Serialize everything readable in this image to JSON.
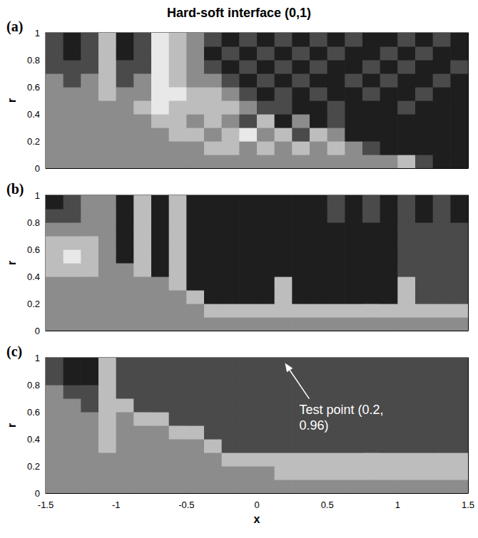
{
  "chart_data": [
    {
      "type": "contour",
      "title": "Hard-soft interface (0,1)",
      "panel": "(a)",
      "y_label": "r",
      "xlim": [
        -1.5,
        1.5
      ],
      "xticks": [
        -1.5,
        -1,
        -0.5,
        0,
        0.5,
        1,
        1.5
      ],
      "ylim": [
        0,
        1
      ],
      "yticks": [
        0,
        0.2,
        0.4,
        0.6,
        0.8,
        1
      ],
      "tick_labels": "y",
      "zlim": [
        -2,
        2
      ],
      "cells": {
        "x_edges": [
          -1.5,
          -1.375,
          -1.25,
          -1.125,
          -1,
          -0.875,
          -0.75,
          -0.625,
          -0.5,
          -0.375,
          -0.25,
          -0.125,
          0,
          0.125,
          0.25,
          0.375,
          0.5,
          0.625,
          0.75,
          0.875,
          1,
          1.125,
          1.25,
          1.375,
          1.5
        ],
        "r_edges": [
          0,
          0.1,
          0.2,
          0.3,
          0.4,
          0.5,
          0.6,
          0.7,
          0.8,
          0.9,
          1
        ],
        "z": [
          [
            0,
            0,
            0,
            0,
            0,
            0,
            0,
            0,
            0,
            0,
            0,
            0,
            0,
            0,
            0,
            0,
            0,
            0,
            0,
            0,
            1,
            -1,
            -2,
            -2
          ],
          [
            0,
            0,
            0,
            0,
            0,
            0,
            0,
            0,
            0,
            1,
            1,
            0,
            1,
            0,
            1,
            0,
            1,
            0,
            -1,
            -2,
            -2,
            -2,
            -2,
            -2
          ],
          [
            0,
            0,
            0,
            0,
            0,
            0,
            0,
            1,
            1,
            0,
            1,
            2,
            0,
            1,
            -1,
            1,
            0,
            -2,
            -2,
            -2,
            -2,
            -2,
            -2,
            -2
          ],
          [
            0,
            0,
            0,
            0,
            0,
            0,
            1,
            1,
            0,
            1,
            0,
            -1,
            1,
            -2,
            0,
            -2,
            -1,
            -2,
            -2,
            -2,
            -2,
            -2,
            -2,
            -2
          ],
          [
            0,
            0,
            0,
            0,
            0,
            1,
            2,
            1,
            1,
            1,
            1,
            0,
            -1,
            -1,
            -2,
            -2,
            -1,
            -2,
            -2,
            -2,
            -1,
            -2,
            -2,
            -2
          ],
          [
            0,
            0,
            0,
            1,
            0,
            0,
            2,
            2,
            1,
            1,
            0,
            -1,
            -2,
            -1,
            -2,
            -1,
            -2,
            -2,
            -1,
            -2,
            -2,
            -1,
            -2,
            -2
          ],
          [
            0,
            -1,
            0,
            1,
            -1,
            0,
            2,
            1,
            0,
            0,
            -1,
            -2,
            -1,
            -2,
            -1,
            -2,
            -2,
            -1,
            -2,
            -1,
            -2,
            -2,
            -1,
            -2
          ],
          [
            -1,
            -1,
            -1,
            1,
            -1,
            -1,
            2,
            1,
            0,
            -1,
            -2,
            -1,
            -2,
            -1,
            -2,
            -1,
            -2,
            -2,
            -1,
            -2,
            -1,
            -2,
            -2,
            -1
          ],
          [
            -1,
            -2,
            -1,
            1,
            -2,
            -1,
            2,
            1,
            0,
            -2,
            -1,
            -2,
            -1,
            -2,
            -1,
            -2,
            -1,
            -2,
            -2,
            -1,
            -2,
            -1,
            -2,
            -2
          ],
          [
            -1,
            -2,
            -1,
            1,
            -2,
            -1,
            2,
            1,
            0,
            -1,
            -2,
            -1,
            -2,
            -1,
            -2,
            -1,
            -2,
            -1,
            -2,
            -2,
            -1,
            -2,
            -1,
            -2
          ]
        ]
      }
    },
    {
      "type": "contour",
      "panel": "(b)",
      "y_label": "r",
      "xlim": [
        -1.5,
        1.5
      ],
      "xticks": [
        -1.5,
        -1,
        -0.5,
        0,
        0.5,
        1,
        1.5
      ],
      "ylim": [
        0,
        1
      ],
      "yticks": [
        0,
        0.2,
        0.4,
        0.6,
        0.8,
        1
      ],
      "tick_labels": "y",
      "zlim": [
        -2,
        2
      ],
      "cells": {
        "x_edges": [
          -1.5,
          -1.375,
          -1.25,
          -1.125,
          -1,
          -0.875,
          -0.75,
          -0.625,
          -0.5,
          -0.375,
          -0.25,
          -0.125,
          0,
          0.125,
          0.25,
          0.375,
          0.5,
          0.625,
          0.75,
          0.875,
          1,
          1.125,
          1.25,
          1.375,
          1.5
        ],
        "r_edges": [
          0,
          0.1,
          0.2,
          0.3,
          0.4,
          0.5,
          0.6,
          0.7,
          0.8,
          0.9,
          1
        ],
        "z": [
          [
            0,
            0,
            0,
            0,
            0,
            0,
            0,
            0,
            0,
            0,
            0,
            0,
            0,
            0,
            0,
            0,
            0,
            0,
            0,
            0,
            0,
            0,
            0,
            0
          ],
          [
            0,
            0,
            0,
            0,
            0,
            0,
            0,
            0,
            0,
            1,
            1,
            1,
            1,
            1,
            1,
            1,
            1,
            1,
            1,
            1,
            1,
            1,
            1,
            1
          ],
          [
            0,
            0,
            0,
            0,
            0,
            0,
            0,
            0,
            1,
            -2,
            -2,
            -2,
            -2,
            1,
            -2,
            -2,
            -2,
            -2,
            -2,
            -2,
            1,
            -1,
            -1,
            -1
          ],
          [
            0,
            0,
            0,
            0,
            0,
            0,
            0,
            1,
            -2,
            -2,
            -2,
            -2,
            -2,
            1,
            -2,
            -2,
            -2,
            -2,
            -2,
            -2,
            1,
            -1,
            -1,
            -1
          ],
          [
            1,
            1,
            1,
            0,
            0,
            1,
            -2,
            1,
            -2,
            -2,
            -2,
            -2,
            -2,
            -2,
            -2,
            -2,
            -2,
            -2,
            -2,
            -2,
            -1,
            -1,
            -1,
            -1
          ],
          [
            1,
            2,
            1,
            0,
            -2,
            1,
            -2,
            1,
            -2,
            -2,
            -2,
            -2,
            -2,
            -2,
            -2,
            -2,
            -2,
            -2,
            -2,
            -2,
            -1,
            -1,
            -1,
            -1
          ],
          [
            1,
            1,
            1,
            0,
            -2,
            1,
            -2,
            1,
            -2,
            -2,
            -2,
            -2,
            -2,
            -2,
            -2,
            -2,
            -2,
            -2,
            -2,
            -2,
            -1,
            -1,
            -1,
            -1
          ],
          [
            0,
            0,
            0,
            0,
            -2,
            1,
            -2,
            1,
            -2,
            -2,
            -2,
            -2,
            -2,
            -2,
            -2,
            -2,
            -2,
            -2,
            -2,
            -2,
            -1,
            -1,
            -1,
            -1
          ],
          [
            -1,
            -1,
            0,
            0,
            -2,
            1,
            -2,
            1,
            -2,
            -2,
            -2,
            -2,
            -2,
            -2,
            -2,
            -2,
            -1,
            -2,
            -1,
            -2,
            -1,
            -2,
            -1,
            -2
          ],
          [
            -2,
            -1,
            0,
            0,
            -2,
            1,
            -2,
            1,
            -2,
            -2,
            -2,
            -2,
            -2,
            -2,
            -2,
            -2,
            -1,
            -2,
            -1,
            -2,
            -1,
            -2,
            -1,
            -2
          ]
        ]
      }
    },
    {
      "type": "contour",
      "panel": "(c)",
      "x_label": "x",
      "y_label": "r",
      "xlim": [
        -1.5,
        1.5
      ],
      "xticks": [
        -1.5,
        -1,
        -0.5,
        0,
        0.5,
        1,
        1.5
      ],
      "ylim": [
        0,
        1
      ],
      "yticks": [
        0,
        0.2,
        0.4,
        0.6,
        0.8,
        1
      ],
      "zlim": [
        -2,
        2
      ],
      "cells": {
        "x_edges": [
          -1.5,
          -1.375,
          -1.25,
          -1.125,
          -1,
          -0.875,
          -0.75,
          -0.625,
          -0.5,
          -0.375,
          -0.25,
          -0.125,
          0,
          0.125,
          0.25,
          0.375,
          0.5,
          0.625,
          0.75,
          0.875,
          1,
          1.125,
          1.25,
          1.375,
          1.5
        ],
        "r_edges": [
          0,
          0.1,
          0.2,
          0.3,
          0.4,
          0.5,
          0.6,
          0.7,
          0.8,
          0.9,
          1
        ],
        "z": [
          [
            0,
            0,
            0,
            0,
            0,
            0,
            0,
            0,
            0,
            0,
            0,
            0,
            0,
            0,
            0,
            0,
            0,
            0,
            0,
            0,
            0,
            0,
            0,
            0
          ],
          [
            0,
            0,
            0,
            0,
            0,
            0,
            0,
            0,
            0,
            0,
            0,
            0,
            0,
            1,
            1,
            1,
            1,
            1,
            1,
            1,
            1,
            1,
            1,
            1
          ],
          [
            0,
            0,
            0,
            0,
            0,
            0,
            0,
            0,
            0,
            0,
            1,
            1,
            1,
            1,
            1,
            1,
            1,
            1,
            1,
            1,
            1,
            1,
            1,
            1
          ],
          [
            0,
            0,
            0,
            1,
            0,
            0,
            0,
            0,
            0,
            1,
            -1,
            -1,
            -1,
            -1,
            -1,
            -1,
            -1,
            -1,
            -1,
            -1,
            -1,
            -1,
            -1,
            -1
          ],
          [
            0,
            0,
            0,
            1,
            0,
            0,
            0,
            1,
            1,
            -1,
            -1,
            -1,
            -1,
            -1,
            -1,
            -1,
            -1,
            -1,
            -1,
            -1,
            -1,
            -1,
            -1,
            -1
          ],
          [
            0,
            0,
            0,
            1,
            0,
            1,
            1,
            -1,
            -1,
            -1,
            -1,
            -1,
            -1,
            -1,
            -1,
            -1,
            -1,
            -1,
            -1,
            -1,
            -1,
            -1,
            -1,
            -1
          ],
          [
            0,
            0,
            -1,
            1,
            1,
            -1,
            -1,
            -1,
            -1,
            -1,
            -1,
            -1,
            -1,
            -1,
            -1,
            -1,
            -1,
            -1,
            -1,
            -1,
            -1,
            -1,
            -1,
            -1
          ],
          [
            0,
            -1,
            -1,
            1,
            -1,
            -1,
            -1,
            -1,
            -1,
            -1,
            -1,
            -1,
            -1,
            -1,
            -1,
            -1,
            -1,
            -1,
            -1,
            -1,
            -1,
            -1,
            -1,
            -1
          ],
          [
            -1,
            -2,
            -2,
            1,
            -1,
            -1,
            -1,
            -1,
            -1,
            -1,
            -1,
            -1,
            -1,
            -1,
            -1,
            -1,
            -1,
            -1,
            -1,
            -1,
            -1,
            -1,
            -1,
            -1
          ],
          [
            -1,
            -2,
            -2,
            1,
            -1,
            -1,
            -1,
            -1,
            -1,
            -1,
            -1,
            -1,
            -1,
            -1,
            -1,
            -1,
            -1,
            -1,
            -1,
            -1,
            -1,
            -1,
            -1,
            -1
          ]
        ]
      },
      "annotations": [
        {
          "text": "Test point (0.2,0.96)",
          "x": 0.2,
          "r": 0.96
        }
      ]
    }
  ]
}
